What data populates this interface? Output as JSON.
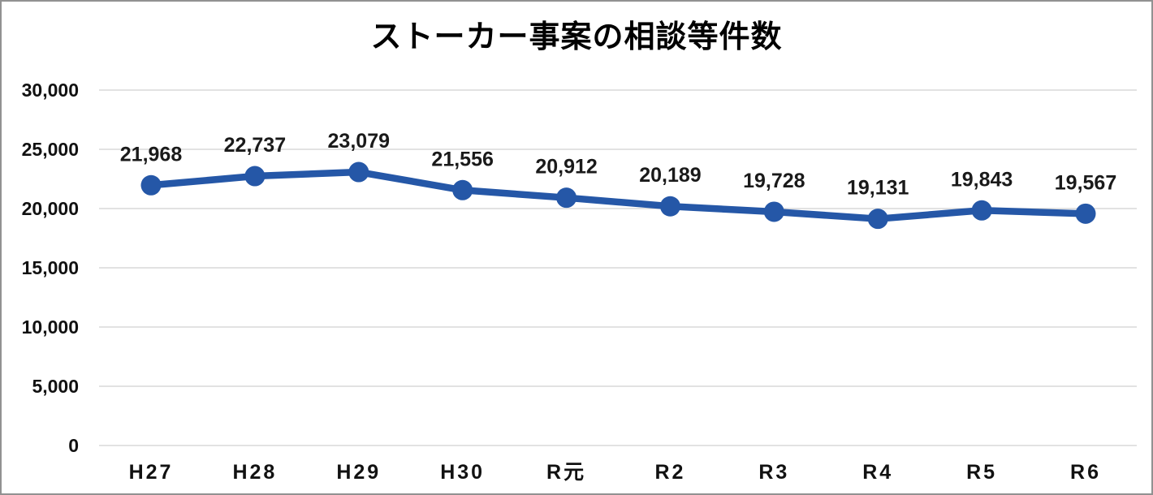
{
  "chart_data": {
    "type": "line",
    "title": "ストーカー事案の相談等件数",
    "categories": [
      "H27",
      "H28",
      "H29",
      "H30",
      "R元",
      "R2",
      "R3",
      "R4",
      "R5",
      "R6"
    ],
    "series": [
      {
        "name": "相談等件数",
        "values": [
          21968,
          22737,
          23079,
          21556,
          20912,
          20189,
          19728,
          19131,
          19843,
          19567
        ],
        "labels": [
          "21,968",
          "22,737",
          "23,079",
          "21,556",
          "20,912",
          "20,189",
          "19,728",
          "19,131",
          "19,843",
          "19,567"
        ],
        "color": "#2557a7"
      }
    ],
    "y_axis": {
      "min": 0,
      "max": 30000,
      "tick_step": 5000,
      "tick_labels": [
        "0",
        "5,000",
        "10,000",
        "15,000",
        "20,000",
        "25,000",
        "30,000"
      ]
    },
    "x_axis_label": "",
    "y_axis_label": "",
    "grid": true,
    "legend": "none",
    "data_labels_position": "above",
    "colors": {
      "line": "#2557a7",
      "marker": "#2557a7",
      "gridline": "#d9d9d9",
      "text": "#111111",
      "border": "#919191",
      "background": "#ffffff"
    }
  }
}
